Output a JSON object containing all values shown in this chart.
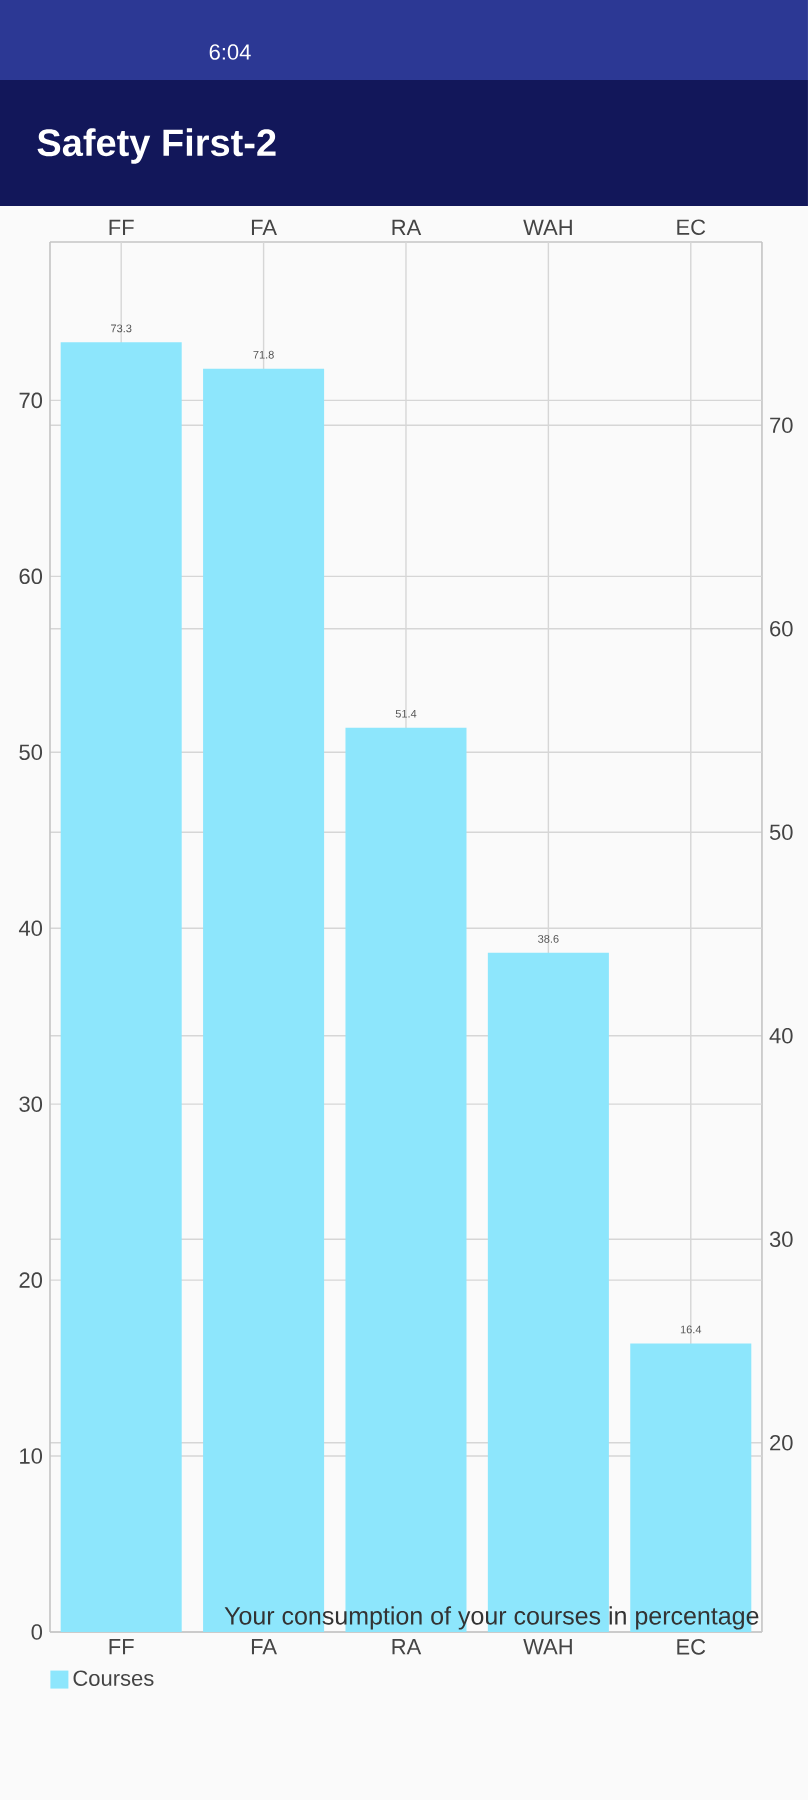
{
  "chart_data": {
    "type": "bar",
    "title": "Safety First-2",
    "categories": [
      "FF",
      "FA",
      "RA",
      "WAH",
      "EC"
    ],
    "series": [
      {
        "name": "Courses",
        "color": "#8de6fc",
        "values": [
          73.3,
          71.8,
          51.4,
          38.6,
          16.4
        ]
      }
    ],
    "data_labels": true,
    "ylim": [
      0,
      79
    ],
    "yticks": [
      0,
      10,
      20,
      30,
      40,
      50,
      60,
      70
    ],
    "y2lim": [
      10.7,
      79
    ],
    "y2ticks": [
      20,
      30,
      40,
      50,
      60,
      70
    ],
    "grid": true,
    "legend": "bottom left",
    "annotations": [
      "Your consumption of your courses in percentage",
      "6:04"
    ]
  }
}
